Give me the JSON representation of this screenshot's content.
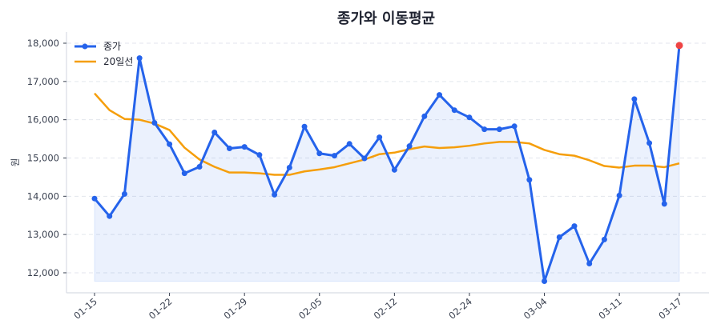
{
  "chart_data": {
    "type": "line",
    "title": "종가와 이동평균",
    "xlabel": "",
    "ylabel": "원",
    "ylim": [
      11550,
      18300
    ],
    "yticks": [
      12000,
      13000,
      14000,
      15000,
      16000,
      17000,
      18000
    ],
    "ytick_labels": [
      "12,000",
      "13,000",
      "14,000",
      "15,000",
      "16,000",
      "17,000",
      "18,000"
    ],
    "xtick_labels": [
      "01-15",
      "01-22",
      "01-29",
      "02-05",
      "02-12",
      "02-24",
      "03-04",
      "03-11",
      "03-17"
    ],
    "xtick_indices": [
      0,
      5,
      10,
      15,
      20,
      25,
      30,
      35,
      39
    ],
    "grid": "horizontal dashed",
    "legend_position": "upper left",
    "series": [
      {
        "name": "종가",
        "color": "#2563eb",
        "marker": "circle",
        "fill": true,
        "last_point_color": "#ef4444",
        "values": [
          13940,
          13480,
          14060,
          17610,
          15920,
          15360,
          14600,
          14770,
          15670,
          15250,
          15290,
          15080,
          14040,
          14750,
          15820,
          15120,
          15060,
          15370,
          14990,
          15540,
          14690,
          15310,
          16090,
          16650,
          16250,
          16060,
          15750,
          15750,
          15830,
          14430,
          11780,
          12930,
          13220,
          12240,
          12870,
          14020,
          16540,
          15390,
          13800,
          17940
        ]
      },
      {
        "name": "20일선",
        "color": "#f59e0b",
        "marker": "none",
        "fill": false,
        "values": [
          16690,
          16250,
          16020,
          16000,
          15900,
          15730,
          15270,
          14960,
          14770,
          14620,
          14620,
          14600,
          14560,
          14560,
          14650,
          14700,
          14760,
          14860,
          14960,
          15100,
          15140,
          15230,
          15300,
          15260,
          15280,
          15320,
          15380,
          15420,
          15420,
          15380,
          15210,
          15100,
          15060,
          14940,
          14790,
          14750,
          14800,
          14800,
          14760,
          14860
        ]
      }
    ]
  },
  "legend": {
    "items": [
      {
        "label": "종가"
      },
      {
        "label": "20일선"
      }
    ]
  }
}
